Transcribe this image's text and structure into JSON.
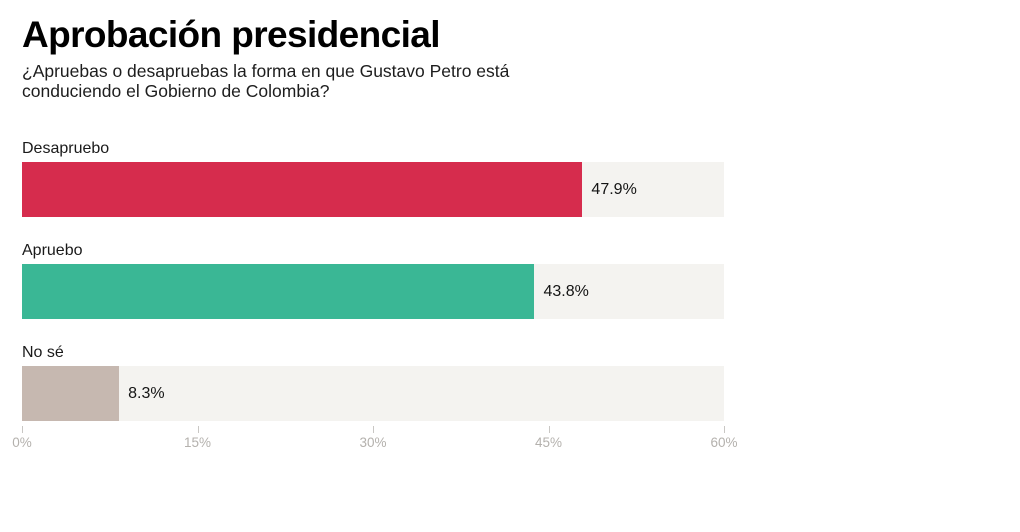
{
  "page": {
    "background": "#ffffff"
  },
  "header": {
    "title": "Aprobación presidencial",
    "subtitle_lines": [
      "¿Apruebas o desapruebas la forma en que Gustavo Petro está",
      "conduciendo el Gobierno de Colombia?"
    ]
  },
  "chart_data": {
    "type": "bar",
    "orientation": "horizontal",
    "title": "Aprobación presidencial",
    "subtitle": "¿Apruebas o desapruebas la forma en que Gustavo Petro está conduciendo el Gobierno de Colombia?",
    "categories": [
      "Desapruebo",
      "Apruebo",
      "No sé"
    ],
    "values": [
      47.9,
      43.8,
      8.3
    ],
    "value_labels": [
      "47.9%",
      "43.8%",
      "8.3%"
    ],
    "bar_colors": [
      "#d62c4d",
      "#3ab795",
      "#c6b8b0"
    ],
    "track_color": "#f4f3f0",
    "xlim": [
      0,
      60
    ],
    "x_ticks": [
      {
        "value": 0,
        "label": "0%"
      },
      {
        "value": 15,
        "label": "15%"
      },
      {
        "value": 30,
        "label": "30%"
      },
      {
        "value": 45,
        "label": "45%"
      },
      {
        "value": 60,
        "label": "60%"
      }
    ],
    "xlabel": "",
    "ylabel": "",
    "grid": false,
    "legend": "none"
  },
  "colors": {
    "axis_label": "#b4b1ad",
    "tick": "#c9c7c4",
    "title_text": "#000000",
    "body_text": "#1a1a1a"
  }
}
